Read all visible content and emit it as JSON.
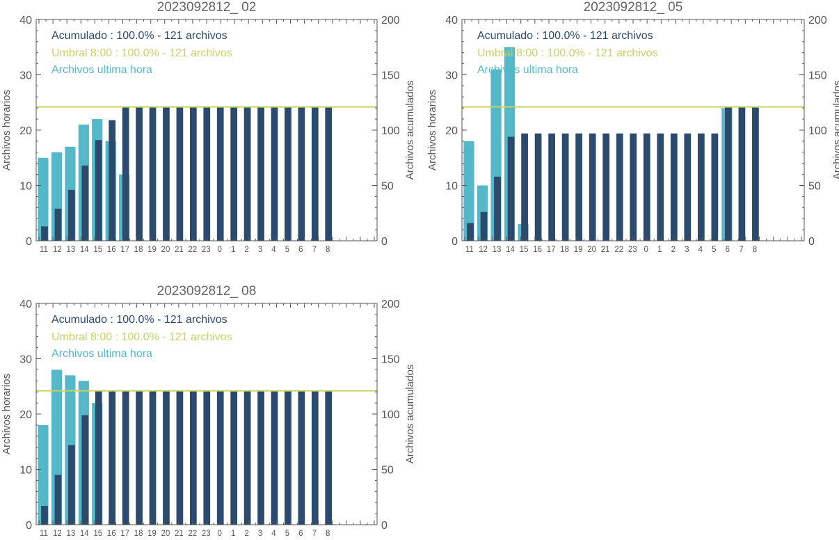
{
  "colors": {
    "accumulated": "#2c4a6b",
    "hourly": "#55b8c8",
    "threshold": "#c8d260",
    "axis": "#555555",
    "title": "#666666"
  },
  "legend": {
    "accumulated": "Acumulado : 100.0% - 121 archivos",
    "threshold": "Umbral 8:00 : 100.0% - 121 archivos",
    "hourly": "Archivos ultima hora"
  },
  "chart_data": [
    {
      "type": "bar",
      "title": "2023092812_ 02",
      "ylabel": "Archivos horarios",
      "ylabel_right": "Archivos acumulados",
      "ylim": [
        0,
        40
      ],
      "ylim_right": [
        0,
        200
      ],
      "yticks": [
        "0",
        "10",
        "20",
        "30",
        "40"
      ],
      "yticks_right": [
        "0",
        "50",
        "100",
        "150",
        "200"
      ],
      "categories": [
        "11",
        "12",
        "13",
        "14",
        "15",
        "16",
        "17",
        "18",
        "19",
        "20",
        "21",
        "22",
        "23",
        "0",
        "1",
        "2",
        "3",
        "4",
        "5",
        "6",
        "7",
        "8"
      ],
      "series": [
        {
          "name": "Archivos ultima hora",
          "axis": "left",
          "values": [
            15,
            16,
            17,
            21,
            22,
            18,
            12,
            0,
            0,
            0,
            0,
            0,
            0,
            0,
            0,
            0,
            0,
            0,
            0,
            0,
            0,
            0
          ]
        },
        {
          "name": "Acumulado",
          "axis": "right",
          "values": [
            13,
            29,
            46,
            68,
            91,
            109,
            121,
            121,
            121,
            121,
            121,
            121,
            121,
            121,
            121,
            121,
            121,
            121,
            121,
            121,
            121,
            121
          ]
        }
      ],
      "threshold": 121
    },
    {
      "type": "bar",
      "title": "2023092812_ 05",
      "ylabel": "Archivos horarios",
      "ylabel_right": "Archivos acumulados",
      "ylim": [
        0,
        40
      ],
      "ylim_right": [
        0,
        200
      ],
      "yticks": [
        "0",
        "10",
        "20",
        "30",
        "40"
      ],
      "yticks_right": [
        "0",
        "50",
        "100",
        "150",
        "200"
      ],
      "categories": [
        "11",
        "12",
        "13",
        "14",
        "15",
        "16",
        "17",
        "18",
        "19",
        "20",
        "21",
        "22",
        "23",
        "0",
        "1",
        "2",
        "3",
        "4",
        "5",
        "6",
        "7",
        "8"
      ],
      "series": [
        {
          "name": "Archivos ultima hora",
          "axis": "left",
          "values": [
            18,
            10,
            31,
            35,
            3,
            0,
            0,
            0,
            0,
            0,
            0,
            0,
            0,
            0,
            0,
            0,
            0,
            0,
            0,
            24,
            0,
            0
          ]
        },
        {
          "name": "Acumulado",
          "axis": "right",
          "values": [
            16,
            26,
            58,
            94,
            97,
            97,
            97,
            97,
            97,
            97,
            97,
            97,
            97,
            97,
            97,
            97,
            97,
            97,
            97,
            121,
            121,
            121
          ]
        }
      ],
      "threshold": 121
    },
    {
      "type": "bar",
      "title": "2023092812_ 08",
      "ylabel": "Archivos horarios",
      "ylabel_right": "Archivos acumulados",
      "ylim": [
        0,
        40
      ],
      "ylim_right": [
        0,
        200
      ],
      "yticks": [
        "0",
        "10",
        "20",
        "30",
        "40"
      ],
      "yticks_right": [
        "0",
        "50",
        "100",
        "150",
        "200"
      ],
      "categories": [
        "11",
        "12",
        "13",
        "14",
        "15",
        "16",
        "17",
        "18",
        "19",
        "20",
        "21",
        "22",
        "23",
        "0",
        "1",
        "2",
        "3",
        "4",
        "5",
        "6",
        "7",
        "8"
      ],
      "series": [
        {
          "name": "Archivos ultima hora",
          "axis": "left",
          "values": [
            18,
            28,
            27,
            26,
            22,
            0,
            0,
            0,
            0,
            0,
            0,
            0,
            0,
            0,
            0,
            0,
            0,
            0,
            0,
            0,
            0,
            0
          ]
        },
        {
          "name": "Acumulado",
          "axis": "right",
          "values": [
            17,
            45,
            72,
            99,
            121,
            121,
            121,
            121,
            121,
            121,
            121,
            121,
            121,
            121,
            121,
            121,
            121,
            121,
            121,
            121,
            121,
            121
          ]
        }
      ],
      "threshold": 121
    }
  ]
}
